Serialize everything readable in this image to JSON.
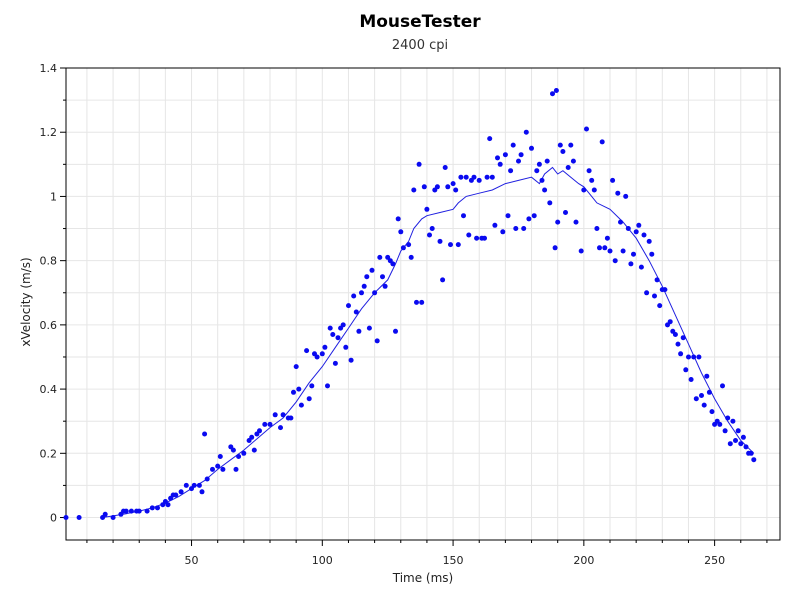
{
  "chart_data": {
    "type": "scatter",
    "title": "MouseTester",
    "subtitle": "2400 cpi",
    "xlabel": "Time (ms)",
    "ylabel": "xVelocity (m/s)",
    "xlim": [
      2,
      275
    ],
    "ylim": [
      -0.07,
      1.4
    ],
    "x_ticks": [
      50,
      100,
      150,
      200,
      250
    ],
    "y_ticks": [
      0,
      0.2,
      0.4,
      0.6,
      0.8,
      1,
      1.2,
      1.4
    ],
    "y_tick_labels": [
      "0",
      "0.2",
      "0.4",
      "0.6",
      "0.8",
      "1",
      "1.2",
      "1.4"
    ],
    "grid": true,
    "colors": {
      "points": "#0a0af0",
      "line": "#2020e0",
      "grid": "#e6e6e6",
      "axis": "#000000"
    },
    "series": [
      {
        "type": "scatter",
        "points": [
          [
            2,
            0
          ],
          [
            7,
            0
          ],
          [
            16,
            0
          ],
          [
            17,
            0.01
          ],
          [
            20,
            0
          ],
          [
            23,
            0.01
          ],
          [
            24,
            0.02
          ],
          [
            25,
            0.02
          ],
          [
            27,
            0.02
          ],
          [
            29,
            0.02
          ],
          [
            30,
            0.02
          ],
          [
            33,
            0.02
          ],
          [
            35,
            0.03
          ],
          [
            37,
            0.03
          ],
          [
            39,
            0.04
          ],
          [
            40,
            0.05
          ],
          [
            41,
            0.04
          ],
          [
            42,
            0.06
          ],
          [
            43,
            0.07
          ],
          [
            44,
            0.07
          ],
          [
            46,
            0.08
          ],
          [
            48,
            0.1
          ],
          [
            50,
            0.09
          ],
          [
            51,
            0.1
          ],
          [
            53,
            0.1
          ],
          [
            54,
            0.08
          ],
          [
            55,
            0.26
          ],
          [
            56,
            0.12
          ],
          [
            58,
            0.15
          ],
          [
            60,
            0.16
          ],
          [
            61,
            0.19
          ],
          [
            62,
            0.15
          ],
          [
            65,
            0.22
          ],
          [
            66,
            0.21
          ],
          [
            67,
            0.15
          ],
          [
            68,
            0.19
          ],
          [
            70,
            0.2
          ],
          [
            72,
            0.24
          ],
          [
            73,
            0.25
          ],
          [
            74,
            0.21
          ],
          [
            75,
            0.26
          ],
          [
            76,
            0.27
          ],
          [
            78,
            0.29
          ],
          [
            80,
            0.29
          ],
          [
            82,
            0.32
          ],
          [
            84,
            0.28
          ],
          [
            85,
            0.32
          ],
          [
            87,
            0.31
          ],
          [
            88,
            0.31
          ],
          [
            89,
            0.39
          ],
          [
            90,
            0.47
          ],
          [
            91,
            0.4
          ],
          [
            92,
            0.35
          ],
          [
            94,
            0.52
          ],
          [
            95,
            0.37
          ],
          [
            96,
            0.41
          ],
          [
            97,
            0.51
          ],
          [
            98,
            0.5
          ],
          [
            100,
            0.51
          ],
          [
            101,
            0.53
          ],
          [
            102,
            0.41
          ],
          [
            103,
            0.59
          ],
          [
            104,
            0.57
          ],
          [
            105,
            0.48
          ],
          [
            106,
            0.56
          ],
          [
            107,
            0.59
          ],
          [
            108,
            0.6
          ],
          [
            109,
            0.53
          ],
          [
            110,
            0.66
          ],
          [
            111,
            0.49
          ],
          [
            112,
            0.69
          ],
          [
            113,
            0.64
          ],
          [
            114,
            0.58
          ],
          [
            115,
            0.7
          ],
          [
            116,
            0.72
          ],
          [
            117,
            0.75
          ],
          [
            118,
            0.59
          ],
          [
            119,
            0.77
          ],
          [
            120,
            0.7
          ],
          [
            121,
            0.55
          ],
          [
            122,
            0.81
          ],
          [
            123,
            0.75
          ],
          [
            124,
            0.72
          ],
          [
            125,
            0.81
          ],
          [
            126,
            0.8
          ],
          [
            127,
            0.79
          ],
          [
            128,
            0.58
          ],
          [
            129,
            0.93
          ],
          [
            130,
            0.89
          ],
          [
            131,
            0.84
          ],
          [
            133,
            0.85
          ],
          [
            134,
            0.81
          ],
          [
            135,
            1.02
          ],
          [
            136,
            0.67
          ],
          [
            137,
            1.1
          ],
          [
            138,
            0.67
          ],
          [
            139,
            1.03
          ],
          [
            140,
            0.96
          ],
          [
            141,
            0.88
          ],
          [
            142,
            0.9
          ],
          [
            143,
            1.02
          ],
          [
            144,
            1.03
          ],
          [
            145,
            0.86
          ],
          [
            146,
            0.74
          ],
          [
            147,
            1.09
          ],
          [
            148,
            1.03
          ],
          [
            149,
            0.85
          ],
          [
            150,
            1.04
          ],
          [
            151,
            1.02
          ],
          [
            152,
            0.85
          ],
          [
            153,
            1.06
          ],
          [
            154,
            0.94
          ],
          [
            155,
            1.06
          ],
          [
            156,
            0.88
          ],
          [
            157,
            1.05
          ],
          [
            158,
            1.06
          ],
          [
            159,
            0.87
          ],
          [
            160,
            1.05
          ],
          [
            161,
            0.87
          ],
          [
            162,
            0.87
          ],
          [
            163,
            1.06
          ],
          [
            164,
            1.18
          ],
          [
            165,
            1.06
          ],
          [
            166,
            0.91
          ],
          [
            167,
            1.12
          ],
          [
            168,
            1.1
          ],
          [
            169,
            0.89
          ],
          [
            170,
            1.13
          ],
          [
            171,
            0.94
          ],
          [
            172,
            1.08
          ],
          [
            173,
            1.16
          ],
          [
            174,
            0.9
          ],
          [
            175,
            1.11
          ],
          [
            176,
            1.13
          ],
          [
            177,
            0.9
          ],
          [
            178,
            1.2
          ],
          [
            179,
            0.93
          ],
          [
            180,
            1.15
          ],
          [
            181,
            0.94
          ],
          [
            182,
            1.08
          ],
          [
            183,
            1.1
          ],
          [
            184,
            1.05
          ],
          [
            185,
            1.02
          ],
          [
            186,
            1.11
          ],
          [
            187,
            0.98
          ],
          [
            188,
            1.32
          ],
          [
            189,
            0.84
          ],
          [
            189.5,
            1.33
          ],
          [
            190,
            0.92
          ],
          [
            191,
            1.16
          ],
          [
            192,
            1.14
          ],
          [
            193,
            0.95
          ],
          [
            194,
            1.09
          ],
          [
            195,
            1.16
          ],
          [
            196,
            1.11
          ],
          [
            197,
            0.92
          ],
          [
            199,
            0.83
          ],
          [
            200,
            1.02
          ],
          [
            201,
            1.21
          ],
          [
            202,
            1.08
          ],
          [
            203,
            1.05
          ],
          [
            204,
            1.02
          ],
          [
            205,
            0.9
          ],
          [
            206,
            0.84
          ],
          [
            207,
            1.17
          ],
          [
            208,
            0.84
          ],
          [
            209,
            0.87
          ],
          [
            210,
            0.83
          ],
          [
            211,
            1.05
          ],
          [
            212,
            0.8
          ],
          [
            213,
            1.01
          ],
          [
            214,
            0.92
          ],
          [
            215,
            0.83
          ],
          [
            216,
            1.0
          ],
          [
            217,
            0.9
          ],
          [
            218,
            0.79
          ],
          [
            219,
            0.82
          ],
          [
            220,
            0.89
          ],
          [
            221,
            0.91
          ],
          [
            222,
            0.78
          ],
          [
            223,
            0.88
          ],
          [
            224,
            0.7
          ],
          [
            225,
            0.86
          ],
          [
            226,
            0.82
          ],
          [
            227,
            0.69
          ],
          [
            228,
            0.74
          ],
          [
            229,
            0.66
          ],
          [
            230,
            0.71
          ],
          [
            231,
            0.71
          ],
          [
            232,
            0.6
          ],
          [
            233,
            0.61
          ],
          [
            234,
            0.58
          ],
          [
            235,
            0.57
          ],
          [
            236,
            0.54
          ],
          [
            237,
            0.51
          ],
          [
            238,
            0.56
          ],
          [
            239,
            0.46
          ],
          [
            240,
            0.5
          ],
          [
            241,
            0.43
          ],
          [
            242,
            0.5
          ],
          [
            243,
            0.37
          ],
          [
            244,
            0.5
          ],
          [
            245,
            0.38
          ],
          [
            246,
            0.35
          ],
          [
            247,
            0.44
          ],
          [
            248,
            0.39
          ],
          [
            249,
            0.33
          ],
          [
            250,
            0.29
          ],
          [
            251,
            0.3
          ],
          [
            252,
            0.29
          ],
          [
            253,
            0.41
          ],
          [
            254,
            0.27
          ],
          [
            255,
            0.31
          ],
          [
            256,
            0.23
          ],
          [
            257,
            0.3
          ],
          [
            258,
            0.24
          ],
          [
            259,
            0.27
          ],
          [
            260,
            0.23
          ],
          [
            261,
            0.25
          ],
          [
            262,
            0.22
          ],
          [
            263,
            0.2
          ],
          [
            264,
            0.2
          ],
          [
            265,
            0.18
          ]
        ]
      },
      {
        "type": "line",
        "points": [
          [
            16,
            0
          ],
          [
            20,
            0.005
          ],
          [
            25,
            0.012
          ],
          [
            30,
            0.02
          ],
          [
            35,
            0.03
          ],
          [
            40,
            0.045
          ],
          [
            45,
            0.065
          ],
          [
            50,
            0.09
          ],
          [
            55,
            0.115
          ],
          [
            60,
            0.15
          ],
          [
            65,
            0.18
          ],
          [
            70,
            0.21
          ],
          [
            75,
            0.245
          ],
          [
            80,
            0.28
          ],
          [
            85,
            0.31
          ],
          [
            90,
            0.36
          ],
          [
            95,
            0.42
          ],
          [
            100,
            0.47
          ],
          [
            105,
            0.53
          ],
          [
            110,
            0.59
          ],
          [
            115,
            0.65
          ],
          [
            120,
            0.7
          ],
          [
            125,
            0.74
          ],
          [
            128,
            0.79
          ],
          [
            130,
            0.83
          ],
          [
            133,
            0.86
          ],
          [
            135,
            0.9
          ],
          [
            138,
            0.93
          ],
          [
            140,
            0.94
          ],
          [
            145,
            0.95
          ],
          [
            150,
            0.96
          ],
          [
            152,
            0.98
          ],
          [
            155,
            1.0
          ],
          [
            160,
            1.01
          ],
          [
            165,
            1.02
          ],
          [
            170,
            1.04
          ],
          [
            175,
            1.05
          ],
          [
            180,
            1.06
          ],
          [
            183,
            1.04
          ],
          [
            185,
            1.07
          ],
          [
            188,
            1.09
          ],
          [
            190,
            1.07
          ],
          [
            192,
            1.08
          ],
          [
            195,
            1.06
          ],
          [
            198,
            1.04
          ],
          [
            200,
            1.03
          ],
          [
            203,
            1.0
          ],
          [
            205,
            0.98
          ],
          [
            210,
            0.96
          ],
          [
            215,
            0.92
          ],
          [
            220,
            0.87
          ],
          [
            225,
            0.8
          ],
          [
            230,
            0.72
          ],
          [
            235,
            0.63
          ],
          [
            240,
            0.54
          ],
          [
            245,
            0.45
          ],
          [
            250,
            0.37
          ],
          [
            255,
            0.3
          ],
          [
            260,
            0.24
          ],
          [
            265,
            0.2
          ]
        ]
      }
    ]
  }
}
